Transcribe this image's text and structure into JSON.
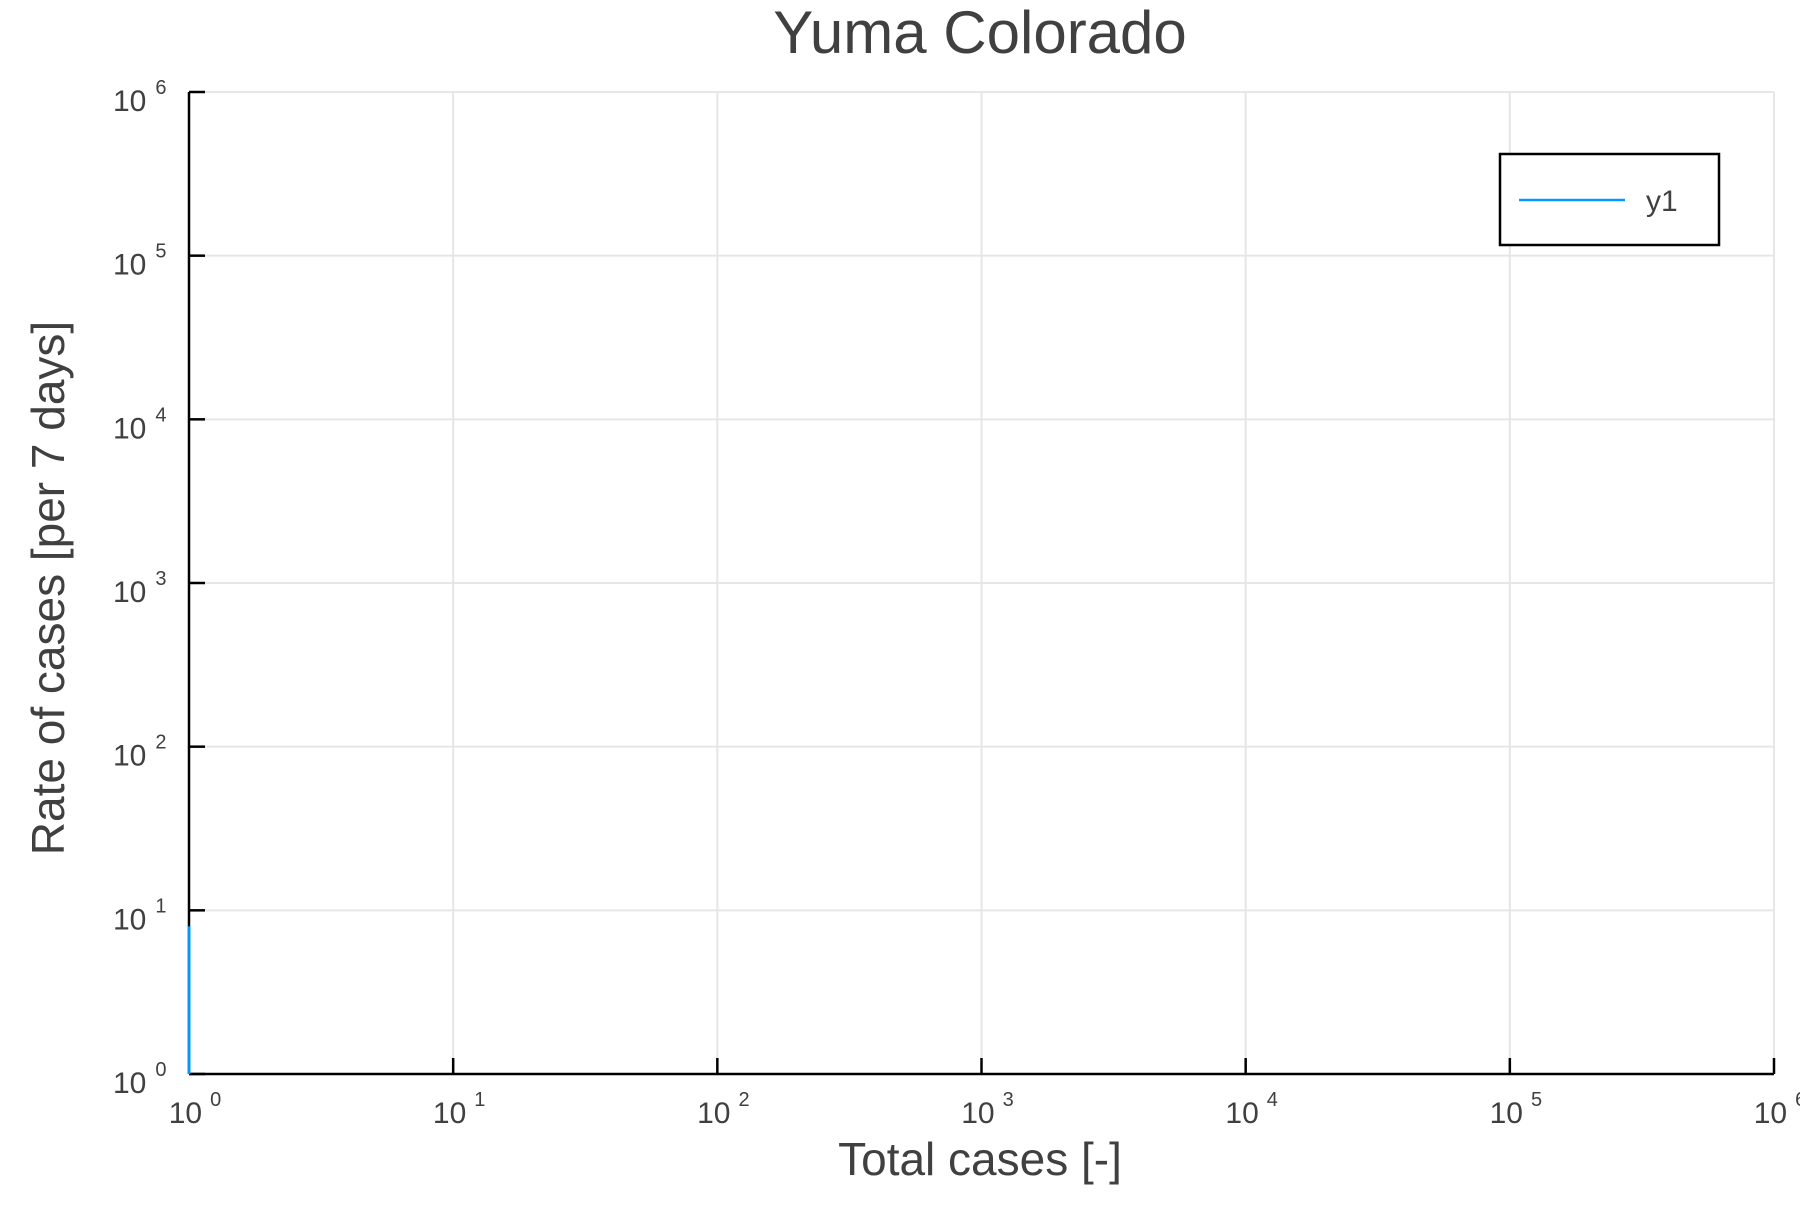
{
  "chart_data": {
    "type": "line",
    "title": "Yuma Colorado",
    "xlabel": "Total cases [-]",
    "ylabel": "Rate of cases [per 7 days]",
    "x_scale": "log10",
    "y_scale": "log10",
    "xlim": [
      1,
      1000000
    ],
    "ylim": [
      1,
      1000000
    ],
    "x_ticks": [
      {
        "base": "10",
        "exp": "0",
        "value": 1
      },
      {
        "base": "10",
        "exp": "1",
        "value": 10
      },
      {
        "base": "10",
        "exp": "2",
        "value": 100
      },
      {
        "base": "10",
        "exp": "3",
        "value": 1000
      },
      {
        "base": "10",
        "exp": "4",
        "value": 10000
      },
      {
        "base": "10",
        "exp": "5",
        "value": 100000
      },
      {
        "base": "10",
        "exp": "6",
        "value": 1000000
      }
    ],
    "y_ticks": [
      {
        "base": "10",
        "exp": "0",
        "value": 1
      },
      {
        "base": "10",
        "exp": "1",
        "value": 10
      },
      {
        "base": "10",
        "exp": "2",
        "value": 100
      },
      {
        "base": "10",
        "exp": "3",
        "value": 1000
      },
      {
        "base": "10",
        "exp": "4",
        "value": 10000
      },
      {
        "base": "10",
        "exp": "5",
        "value": 100000
      },
      {
        "base": "10",
        "exp": "6",
        "value": 1000000
      }
    ],
    "grid": true,
    "legend_position": "top-right",
    "series": [
      {
        "name": "y1",
        "color": "#009AFA",
        "points": [
          {
            "x": 1,
            "y": 1
          },
          {
            "x": 1,
            "y": 8
          }
        ]
      }
    ]
  }
}
